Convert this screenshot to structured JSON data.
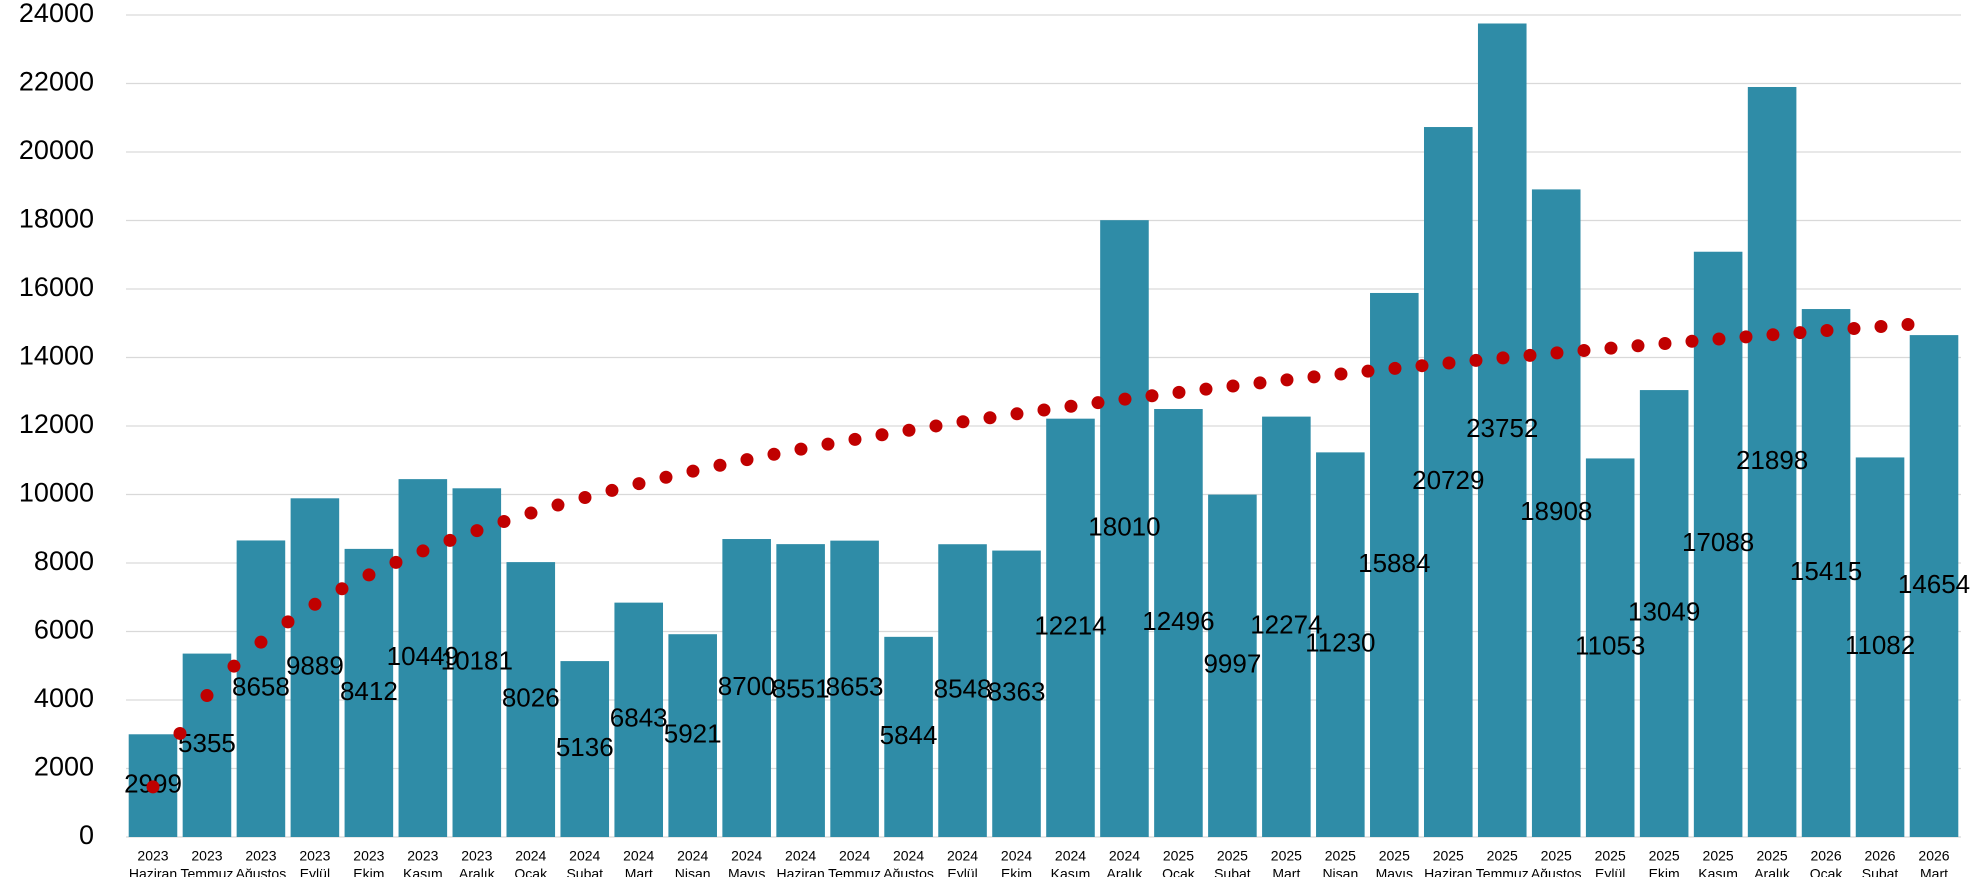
{
  "chart_data": {
    "type": "bar",
    "categories": [
      [
        "2023",
        "Haziran"
      ],
      [
        "2023",
        "Temmuz"
      ],
      [
        "2023",
        "Ağustos"
      ],
      [
        "2023",
        "Eylül"
      ],
      [
        "2023",
        "Ekim"
      ],
      [
        "2023",
        "Kasım"
      ],
      [
        "2023",
        "Aralık"
      ],
      [
        "2024",
        "Ocak"
      ],
      [
        "2024",
        "Şubat"
      ],
      [
        "2024",
        "Mart"
      ],
      [
        "2024",
        "Nisan"
      ],
      [
        "2024",
        "Mayıs"
      ],
      [
        "2024",
        "Haziran"
      ],
      [
        "2024",
        "Temmuz"
      ],
      [
        "2024",
        "Ağustos"
      ],
      [
        "2024",
        "Eylül"
      ],
      [
        "2024",
        "Ekim"
      ],
      [
        "2024",
        "Kasım"
      ],
      [
        "2024",
        "Aralık"
      ],
      [
        "2025",
        "Ocak"
      ],
      [
        "2025",
        "Şubat"
      ],
      [
        "2025",
        "Mart"
      ],
      [
        "2025",
        "Nisan"
      ],
      [
        "2025",
        "Mayıs"
      ],
      [
        "2025",
        "Haziran"
      ],
      [
        "2025",
        "Temmuz"
      ],
      [
        "2025",
        "Ağustos"
      ],
      [
        "2025",
        "Eylül"
      ],
      [
        "2025",
        "Ekim"
      ],
      [
        "2025",
        "Kasım"
      ],
      [
        "2025",
        "Aralık"
      ],
      [
        "2026",
        "Ocak"
      ],
      [
        "2026",
        "Şubat"
      ],
      [
        "2026",
        "Mart"
      ]
    ],
    "values": [
      2999,
      5355,
      8658,
      9889,
      8412,
      10449,
      10181,
      8026,
      5136,
      6843,
      5921,
      8700,
      8551,
      8653,
      5844,
      8548,
      8363,
      12214,
      18010,
      12496,
      9997,
      12274,
      11230,
      15884,
      20729,
      23752,
      18908,
      11053,
      13049,
      17088,
      21898,
      15415,
      11082,
      14654
    ],
    "color": "#2f8ca7",
    "ylim": [
      0,
      24000
    ],
    "yticks": [
      0,
      2000,
      4000,
      6000,
      8000,
      10000,
      12000,
      14000,
      16000,
      18000,
      20000,
      22000,
      24000
    ],
    "grid": true,
    "trendline": {
      "type": "logarithmic",
      "color": "#c00000",
      "style": "dotted"
    }
  }
}
